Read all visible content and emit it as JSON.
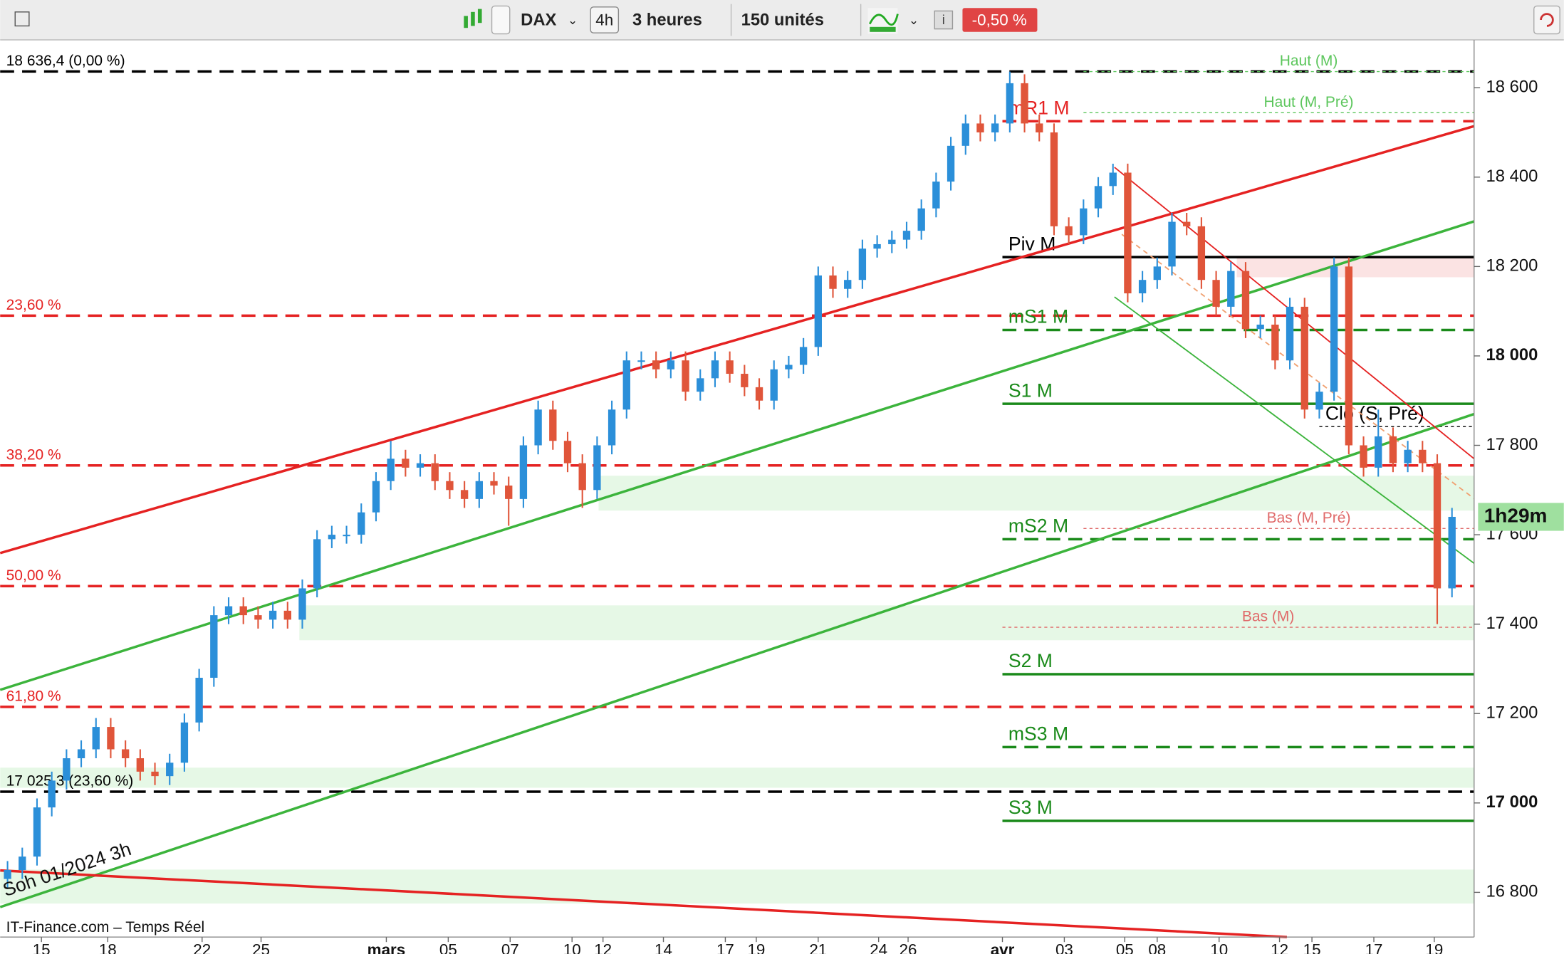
{
  "toolbar": {
    "symbol": "DAX",
    "interval": "4h",
    "period": "3 heures",
    "units": "150 unités",
    "change": "-0,50 %"
  },
  "chart_data": {
    "type": "candlestick",
    "source": "IT-Finance.com – Temps Réel",
    "annotation": "Soh 01/2024 3h",
    "countdown": "1h29m",
    "up_color": "#2b8fd9",
    "down_color": "#e0553a",
    "xlim": [
      0,
      100
    ],
    "xticks": [
      {
        "value": 2.8,
        "label": "15"
      },
      {
        "value": 7.3,
        "label": "18"
      },
      {
        "value": 13.7,
        "label": "22"
      },
      {
        "value": 17.7,
        "label": "25"
      },
      {
        "value": 26.2,
        "label": "mars"
      },
      {
        "value": 30.4,
        "label": "05"
      },
      {
        "value": 34.6,
        "label": "07"
      },
      {
        "value": 38.8,
        "label": "10"
      },
      {
        "value": 40.9,
        "label": "12"
      },
      {
        "value": 45.0,
        "label": "14"
      },
      {
        "value": 49.2,
        "label": "17"
      },
      {
        "value": 51.3,
        "label": "19"
      },
      {
        "value": 55.5,
        "label": "21"
      },
      {
        "value": 59.6,
        "label": "24"
      },
      {
        "value": 61.6,
        "label": "26"
      },
      {
        "value": 68.0,
        "label": "avr"
      },
      {
        "value": 72.2,
        "label": "03"
      },
      {
        "value": 76.3,
        "label": "05"
      },
      {
        "value": 78.5,
        "label": "08"
      },
      {
        "value": 82.7,
        "label": "10"
      },
      {
        "value": 86.8,
        "label": "12"
      },
      {
        "value": 89.0,
        "label": "15"
      },
      {
        "value": 93.2,
        "label": "17"
      },
      {
        "value": 97.3,
        "label": "19"
      }
    ],
    "ylim": [
      16700,
      18707
    ],
    "yticks": [
      {
        "value": 16800,
        "label": "16 800"
      },
      {
        "value": 17000,
        "label": "17 000"
      },
      {
        "value": 17200,
        "label": "17 200"
      },
      {
        "value": 17400,
        "label": "17 400"
      },
      {
        "value": 17600,
        "label": "17 600"
      },
      {
        "value": 17800,
        "label": "17 800"
      },
      {
        "value": 18000,
        "label": "18 000"
      },
      {
        "value": 18200,
        "label": "18 200"
      },
      {
        "value": 18400,
        "label": "18 400"
      },
      {
        "value": 18600,
        "label": "18 600"
      }
    ],
    "open": [
      16830,
      16850,
      16880,
      16990,
      17050,
      17100,
      17120,
      17170,
      17120,
      17100,
      17070,
      17060,
      17090,
      17180,
      17280,
      17420,
      17440,
      17420,
      17410,
      17430,
      17410,
      17480,
      17590,
      17600,
      17600,
      17650,
      17720,
      17770,
      17750,
      17760,
      17720,
      17700,
      17680,
      17720,
      17710,
      17680,
      17800,
      17880,
      17810,
      17760,
      17700,
      17800,
      17880,
      17990,
      17990,
      17970,
      17990,
      17920,
      17950,
      17990,
      17960,
      17930,
      17900,
      17970,
      17980,
      18020,
      18180,
      18150,
      18170,
      18240,
      18250,
      18260,
      18280,
      18330,
      18390,
      18470,
      18520,
      18500,
      18520,
      18610,
      18520,
      18500,
      18290,
      18270,
      18330,
      18380,
      18410,
      18140,
      18170,
      18200,
      18300,
      18290,
      18170,
      18110,
      18190,
      18060,
      18070,
      17990,
      18110,
      17880,
      17920,
      18200,
      17800,
      17750,
      17820,
      17760,
      17790,
      17760,
      17480
    ],
    "high": [
      16870,
      16900,
      17010,
      17070,
      17120,
      17140,
      17190,
      17190,
      17140,
      17120,
      17090,
      17110,
      17200,
      17300,
      17440,
      17460,
      17460,
      17440,
      17450,
      17450,
      17500,
      17610,
      17620,
      17620,
      17670,
      17740,
      17810,
      17790,
      17780,
      17780,
      17740,
      17720,
      17740,
      17740,
      17730,
      17820,
      17900,
      17900,
      17830,
      17780,
      17820,
      17900,
      18010,
      18010,
      18010,
      18010,
      18010,
      17970,
      18010,
      18010,
      17980,
      17950,
      17990,
      18000,
      18040,
      18200,
      18200,
      18190,
      18260,
      18270,
      18280,
      18300,
      18350,
      18410,
      18490,
      18540,
      18540,
      18540,
      18636,
      18630,
      18540,
      18520,
      18310,
      18350,
      18400,
      18430,
      18430,
      18190,
      18220,
      18320,
      18320,
      18310,
      18190,
      18210,
      18210,
      18090,
      18090,
      18130,
      18130,
      17940,
      18220,
      18220,
      17820,
      17880,
      17840,
      17810,
      17810,
      17780,
      17660
    ],
    "low": [
      16810,
      16830,
      16860,
      16970,
      17030,
      17080,
      17100,
      17100,
      17080,
      17050,
      17040,
      17040,
      17070,
      17160,
      17260,
      17400,
      17400,
      17390,
      17390,
      17390,
      17390,
      17460,
      17570,
      17580,
      17580,
      17630,
      17700,
      17730,
      17730,
      17700,
      17680,
      17660,
      17660,
      17690,
      17620,
      17660,
      17780,
      17790,
      17740,
      17660,
      17680,
      17780,
      17860,
      17970,
      17950,
      17950,
      17900,
      17900,
      17930,
      17940,
      17910,
      17880,
      17880,
      17950,
      17960,
      18000,
      18130,
      18130,
      18150,
      18220,
      18230,
      18240,
      18260,
      18310,
      18370,
      18450,
      18480,
      18480,
      18500,
      18500,
      18480,
      18270,
      18250,
      18250,
      18310,
      18360,
      18120,
      18120,
      18150,
      18180,
      18270,
      18150,
      18090,
      18090,
      18040,
      18040,
      17970,
      17970,
      17860,
      17860,
      17900,
      17780,
      17730,
      17730,
      17740,
      17740,
      17740,
      17400,
      17460
    ],
    "close": [
      16850,
      16880,
      16990,
      17050,
      17100,
      17120,
      17170,
      17120,
      17100,
      17070,
      17060,
      17090,
      17180,
      17280,
      17420,
      17440,
      17420,
      17410,
      17430,
      17410,
      17480,
      17590,
      17600,
      17600,
      17650,
      17720,
      17770,
      17750,
      17760,
      17720,
      17700,
      17680,
      17720,
      17710,
      17680,
      17800,
      17880,
      17810,
      17760,
      17700,
      17800,
      17880,
      17990,
      17990,
      17970,
      17990,
      17920,
      17950,
      17990,
      17960,
      17930,
      17900,
      17970,
      17980,
      18020,
      18180,
      18150,
      18170,
      18240,
      18250,
      18260,
      18280,
      18330,
      18390,
      18470,
      18520,
      18500,
      18520,
      18610,
      18520,
      18500,
      18290,
      18270,
      18330,
      18380,
      18410,
      18140,
      18170,
      18200,
      18300,
      18290,
      18170,
      18110,
      18190,
      18060,
      18070,
      17990,
      18110,
      17880,
      17920,
      18200,
      17800,
      17750,
      17820,
      17760,
      17790,
      17760,
      17480,
      17640
    ],
    "zones": [
      {
        "from": 0,
        "low": 16775,
        "high": 16851,
        "color": "#e6f8e6"
      },
      {
        "from": 0,
        "low": 17034,
        "high": 17079,
        "color": "#e6f8e6"
      },
      {
        "from": 20.3,
        "low": 17364,
        "high": 17442,
        "color": "#e6f8e6"
      },
      {
        "from": 40.6,
        "low": 17654,
        "high": 17732,
        "color": "#e6f8e6"
      },
      {
        "from": 83.9,
        "low": 18176,
        "high": 18221,
        "color": "#fbe3e3"
      }
    ],
    "levels": [
      {
        "label": "18 636,4 (0,00 %)",
        "value": 18636.4,
        "color": "#000000",
        "style": "dash",
        "from": 0,
        "label_at": "left"
      },
      {
        "label": "23,60 %",
        "value": 18090,
        "color": "#e52222",
        "style": "dash",
        "from": 0,
        "label_at": "left"
      },
      {
        "label": "38,20 %",
        "value": 17755,
        "color": "#e52222",
        "style": "dash",
        "from": 0,
        "label_at": "left"
      },
      {
        "label": "50,00 %",
        "value": 17485,
        "color": "#e52222",
        "style": "dash",
        "from": 0,
        "label_at": "left"
      },
      {
        "label": "61,80 %",
        "value": 17215,
        "color": "#e52222",
        "style": "dash",
        "from": 0,
        "label_at": "left"
      },
      {
        "label": "17 025,3 (23,60 %)",
        "value": 17025.3,
        "color": "#000000",
        "style": "dash",
        "from": 0,
        "label_at": "left"
      },
      {
        "label": "mR1 M",
        "value": 18525,
        "color": "#e52222",
        "style": "dash",
        "from": 68,
        "label_at": "start"
      },
      {
        "label": "Piv M",
        "value": 18221,
        "color": "#000000",
        "style": "solid",
        "from": 68,
        "label_at": "start"
      },
      {
        "label": "mS1 M",
        "value": 18058,
        "color": "#1a8a1a",
        "style": "dash",
        "from": 68,
        "label_at": "start"
      },
      {
        "label": "S1 M",
        "value": 17893,
        "color": "#1a8a1a",
        "style": "solid",
        "from": 68,
        "label_at": "start"
      },
      {
        "label": "mS2 M",
        "value": 17590,
        "color": "#1a8a1a",
        "style": "dash",
        "from": 68,
        "label_at": "start"
      },
      {
        "label": "S2 M",
        "value": 17288,
        "color": "#1a8a1a",
        "style": "solid",
        "from": 68,
        "label_at": "start"
      },
      {
        "label": "mS3 M",
        "value": 17125,
        "color": "#1a8a1a",
        "style": "dash",
        "from": 68,
        "label_at": "start"
      },
      {
        "label": "S3 M",
        "value": 16960,
        "color": "#1a8a1a",
        "style": "solid",
        "from": 68,
        "label_at": "start"
      },
      {
        "label": "Haut (M)",
        "value": 18636,
        "color": "#5cc65c",
        "style": "dot",
        "from": 73.5,
        "label_at": "middle"
      },
      {
        "label": "Haut (M, Pré)",
        "value": 18544,
        "color": "#5cc65c",
        "style": "dot",
        "from": 73.5,
        "label_at": "middle"
      },
      {
        "label": "Clo (S, Pré)",
        "value": 17842,
        "color": "#000000",
        "style": "dot",
        "from": 89.5,
        "label_at": "start"
      },
      {
        "label": "Bas (M, Pré)",
        "value": 17614,
        "color": "#e06a6a",
        "style": "dot",
        "from": 73.5,
        "label_at": "middle"
      },
      {
        "label": "Bas (M)",
        "value": 17393,
        "color": "#e06a6a",
        "style": "dot",
        "from": 68,
        "label_at": "middle"
      }
    ],
    "trendlines": [
      {
        "color": "#e52222",
        "width": 2.5,
        "x": [
          0,
          100
        ],
        "y": [
          17559,
          18514
        ]
      },
      {
        "color": "#3cb43c",
        "width": 2.5,
        "x": [
          0,
          100
        ],
        "y": [
          17253,
          18301
        ]
      },
      {
        "color": "#3cb43c",
        "width": 2.5,
        "x": [
          0,
          100
        ],
        "y": [
          16767,
          17870
        ]
      },
      {
        "color": "#e52222",
        "width": 2.5,
        "x": [
          0,
          87.3
        ],
        "y": [
          16849,
          16700
        ]
      },
      {
        "color": "#e52222",
        "width": 1.3,
        "x": [
          75.6,
          100
        ],
        "y": [
          18422,
          17770
        ]
      },
      {
        "color": "#3cb43c",
        "width": 1.3,
        "x": [
          75.6,
          100
        ],
        "y": [
          18132,
          17536
        ]
      },
      {
        "color": "#f0a070",
        "width": 1.3,
        "x": [
          76.1,
          100
        ],
        "y": [
          18272,
          17681
        ],
        "dash": true
      }
    ]
  }
}
